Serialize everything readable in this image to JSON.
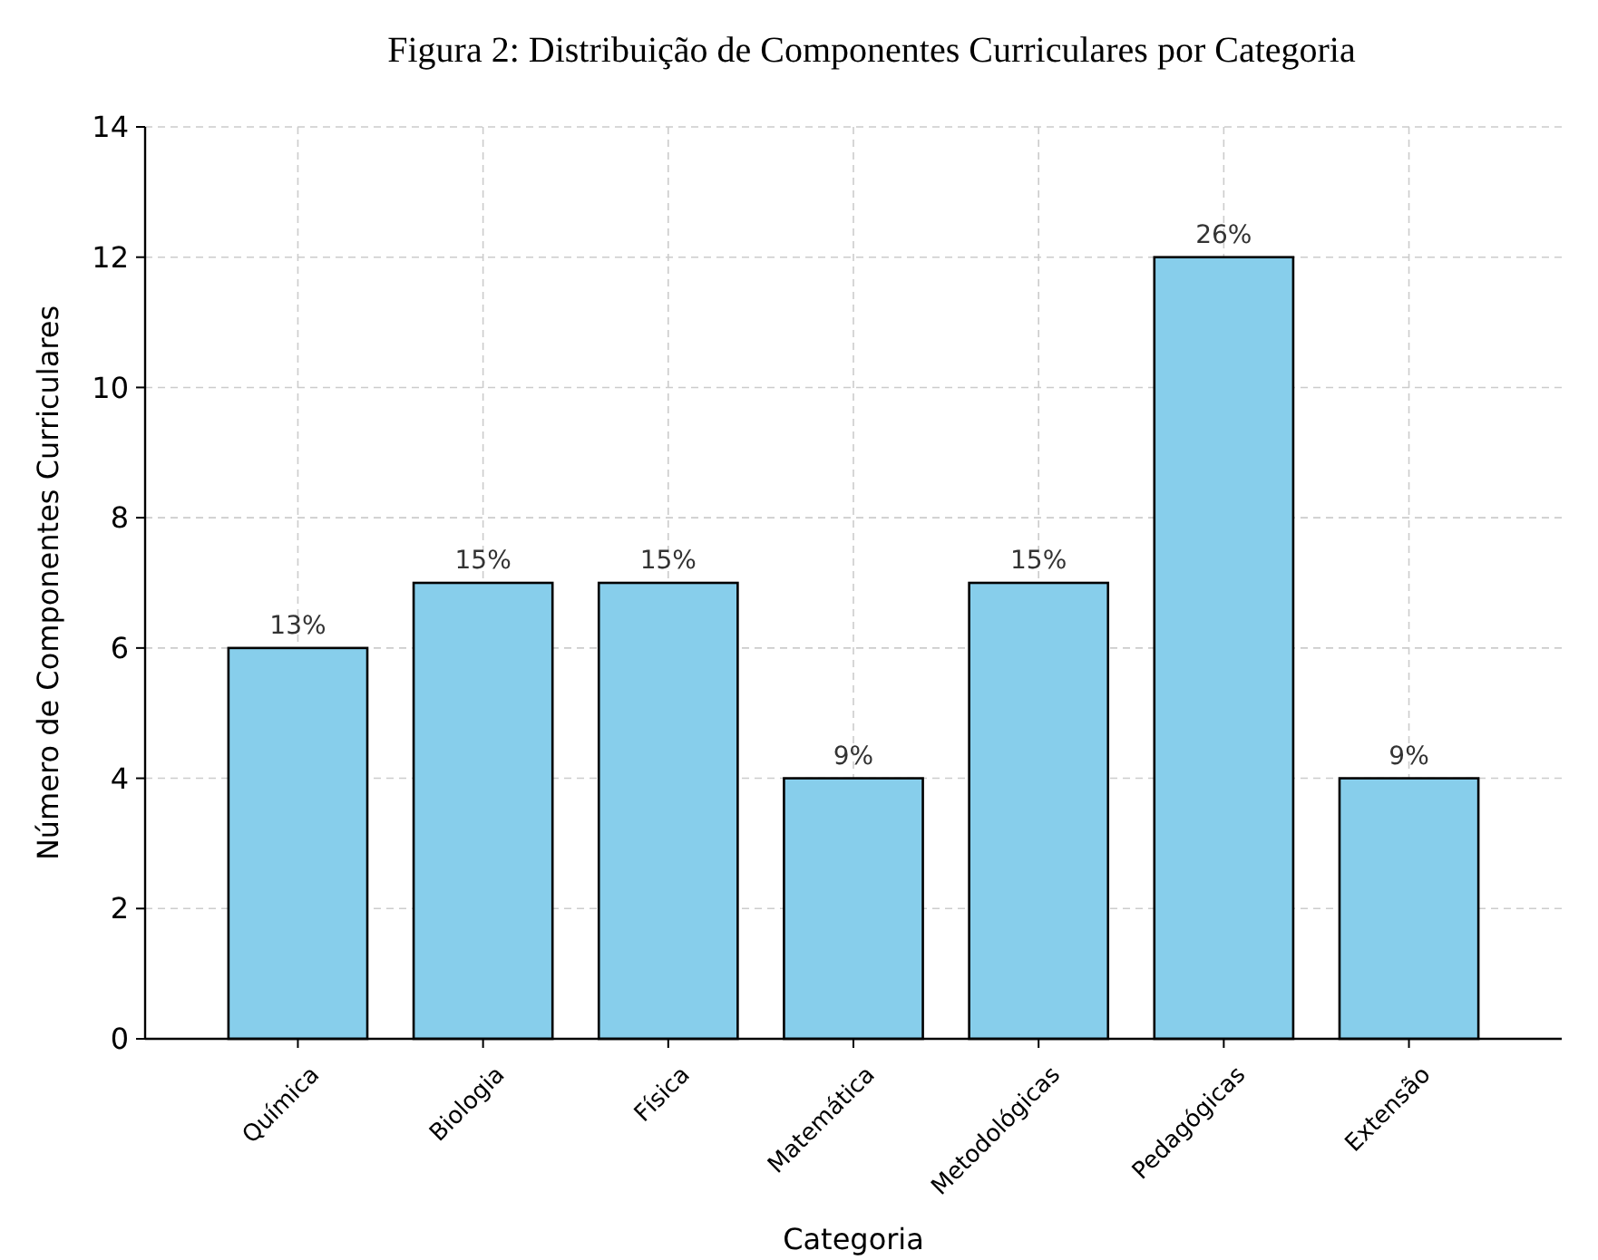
{
  "chart_data": {
    "type": "bar",
    "title": "Figura 2: Distribuição de Componentes Curriculares por Categoria",
    "xlabel": "Categoria",
    "ylabel": "Número de Componentes Curriculares",
    "categories": [
      "Química",
      "Biologia",
      "Física",
      "Matemática",
      "Metodológicas",
      "Pedagógicas",
      "Extensão"
    ],
    "values": [
      6,
      7,
      7,
      4,
      7,
      12,
      4
    ],
    "annotations": [
      {
        "text": "13%",
        "x": "Química",
        "y": 6
      },
      {
        "text": "15%",
        "x": "Biologia",
        "y": 7
      },
      {
        "text": "15%",
        "x": "Física",
        "y": 7
      },
      {
        "text": "9%",
        "x": "Matemática",
        "y": 4
      },
      {
        "text": "15%",
        "x": "Metodológicas",
        "y": 7
      },
      {
        "text": "26%",
        "x": "Pedagógicas",
        "y": 12
      },
      {
        "text": "9%",
        "x": "Extensão",
        "y": 4
      }
    ],
    "color": "#87ceeb",
    "ylim": [
      0,
      14
    ],
    "yticks": [
      0,
      2,
      4,
      6,
      8,
      10,
      12,
      14
    ],
    "grid": true
  }
}
